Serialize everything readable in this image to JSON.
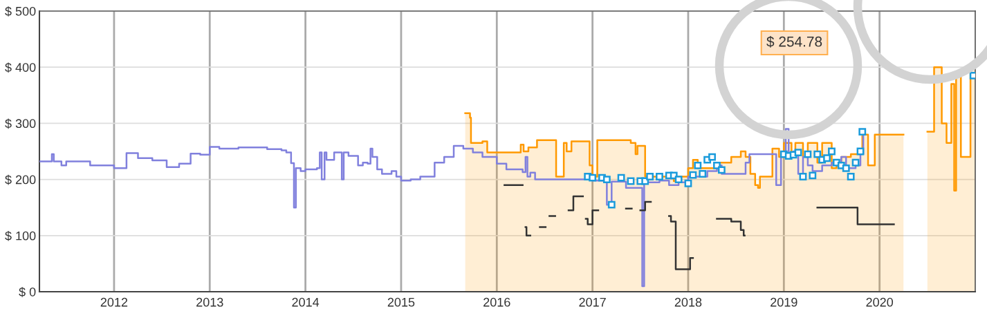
{
  "chart_data": {
    "type": "step",
    "xlim": [
      2011.22,
      2021.0
    ],
    "xticks": [
      {
        "value": 2012,
        "label": "2012"
      },
      {
        "value": 2013,
        "label": "2013"
      },
      {
        "value": 2014,
        "label": "2014"
      },
      {
        "value": 2015,
        "label": "2015"
      },
      {
        "value": 2016,
        "label": "2016"
      },
      {
        "value": 2017,
        "label": "2017"
      },
      {
        "value": 2018,
        "label": "2018"
      },
      {
        "value": 2019,
        "label": "2019"
      },
      {
        "value": 2020,
        "label": "2020"
      }
    ],
    "ylim": [
      0,
      500
    ],
    "yticks": [
      {
        "value": 0,
        "label": "$ 0"
      },
      {
        "value": 100,
        "label": "$ 100"
      },
      {
        "value": 200,
        "label": "$ 200"
      },
      {
        "value": 300,
        "label": "$ 300"
      },
      {
        "value": 400,
        "label": "$ 400"
      },
      {
        "value": 500,
        "label": "$ 500"
      }
    ],
    "grid": true,
    "annotations": [
      "$ 254.78"
    ],
    "series": [
      {
        "type": "area",
        "color": "#ff9900",
        "x": [
          2015.67,
          2015.72,
          2015.72,
          2015.73,
          2015.73,
          2015.85,
          2015.85,
          2015.9,
          2015.9,
          2016.25,
          2016.25,
          2016.28,
          2016.28,
          2016.33,
          2016.33,
          2016.42,
          2016.42,
          2016.62,
          2016.62,
          2016.7,
          2016.7,
          2016.73,
          2016.73,
          2016.78,
          2016.78,
          2016.97,
          2016.97,
          2017.0,
          2017.0,
          2017.05,
          2017.05,
          2017.4,
          2017.4,
          2017.45,
          2017.45,
          2017.47,
          2017.47,
          2017.55,
          2017.55,
          2017.8,
          2017.8,
          2017.85,
          2017.85,
          2017.9,
          2017.9,
          2018.0,
          2018.0,
          2018.05,
          2018.05,
          2018.1,
          2018.1,
          2018.3,
          2018.3,
          2018.45,
          2018.45,
          2018.55,
          2018.55,
          2018.6,
          2018.6,
          2018.65,
          2018.65,
          2018.7,
          2018.7,
          2018.73,
          2018.73,
          2018.75,
          2018.75,
          2018.88,
          2018.88,
          2018.95,
          2018.95,
          2019.0,
          2019.0,
          2019.08,
          2019.08,
          2019.12,
          2019.12,
          2019.2,
          2019.2,
          2019.25,
          2019.25,
          2019.35,
          2019.35,
          2019.4,
          2019.4,
          2019.5,
          2019.5,
          2019.55,
          2019.55,
          2019.6,
          2019.6,
          2019.7,
          2019.7,
          2019.8,
          2019.8,
          2019.82,
          2019.82,
          2019.88,
          2019.88,
          2019.95,
          2019.95,
          2020.25,
          2020.3,
          2020.5,
          2020.57,
          2020.57,
          2020.65,
          2020.65,
          2020.7,
          2020.7,
          2020.75,
          2020.75,
          2020.78,
          2020.78,
          2020.8,
          2020.8,
          2020.85,
          2020.85,
          2020.95,
          2020.95,
          2021.0
        ],
        "values": [
          318,
          318,
          310,
          310,
          265,
          265,
          268,
          268,
          248,
          248,
          262,
          262,
          250,
          250,
          257,
          257,
          270,
          270,
          205,
          205,
          265,
          265,
          250,
          250,
          268,
          268,
          225,
          225,
          205,
          205,
          270,
          270,
          265,
          265,
          245,
          245,
          260,
          260,
          205,
          205,
          203,
          203,
          197,
          197,
          205,
          205,
          220,
          220,
          235,
          235,
          220,
          220,
          230,
          230,
          240,
          240,
          250,
          250,
          240,
          240,
          210,
          210,
          190,
          190,
          185,
          185,
          205,
          205,
          255,
          255,
          240,
          240,
          265,
          265,
          240,
          240,
          265,
          265,
          240,
          240,
          265,
          265,
          230,
          230,
          265,
          265,
          220,
          220,
          230,
          230,
          240,
          240,
          245,
          245,
          250,
          250,
          280,
          280,
          225,
          225,
          280,
          280,
          null,
          285,
          285,
          400,
          400,
          300,
          300,
          265,
          265,
          370,
          370,
          180,
          180,
          390,
          390,
          240,
          240,
          400,
          400
        ]
      },
      {
        "color": "#8080dd",
        "x": [
          2011.22,
          2011.35,
          2011.37,
          2011.45,
          2011.5,
          2011.75,
          2012.0,
          2012.13,
          2012.25,
          2012.4,
          2012.55,
          2012.68,
          2012.8,
          2012.9,
          2013.0,
          2013.1,
          2013.3,
          2013.6,
          2013.75,
          2013.8,
          2013.85,
          2013.88,
          2013.9,
          2013.95,
          2014.0,
          2014.12,
          2014.15,
          2014.17,
          2014.2,
          2014.22,
          2014.3,
          2014.38,
          2014.4,
          2014.45,
          2014.55,
          2014.6,
          2014.65,
          2014.68,
          2014.7,
          2014.75,
          2014.8,
          2014.9,
          2014.95,
          2015.0,
          2015.1,
          2015.2,
          2015.35,
          2015.45,
          2015.55,
          2015.65,
          2015.75,
          2015.85,
          2016.0,
          2016.1,
          2016.25,
          2016.27,
          2016.3,
          2016.32,
          2016.35,
          2016.4,
          2016.9,
          2017.0,
          2017.15,
          2017.2,
          2017.35,
          2017.5,
          2017.52,
          2017.54,
          2017.7,
          2017.8,
          2017.9,
          2018.0,
          2018.2,
          2018.3,
          2018.35,
          2018.6,
          2018.64,
          2018.92,
          2018.97,
          2019.0,
          2019.02,
          2019.05,
          2019.1,
          2019.15,
          2019.2,
          2019.25,
          2019.3,
          2019.4,
          2019.5,
          2019.6,
          2019.65,
          2019.75,
          2019.8,
          2019.83,
          2019.85
        ],
        "values": [
          232,
          245,
          232,
          225,
          232,
          225,
          220,
          247,
          238,
          234,
          222,
          228,
          246,
          244,
          258,
          255,
          257,
          254,
          252,
          248,
          229,
          150,
          220,
          215,
          218,
          220,
          248,
          200,
          248,
          235,
          248,
          200,
          248,
          242,
          225,
          230,
          228,
          255,
          240,
          218,
          210,
          215,
          205,
          198,
          200,
          205,
          230,
          240,
          260,
          255,
          248,
          240,
          228,
          218,
          218,
          213,
          240,
          205,
          212,
          200,
          200,
          198,
          155,
          196,
          185,
          185,
          10,
          195,
          198,
          190,
          195,
          205,
          215,
          225,
          210,
          230,
          245,
          190,
          245,
          250,
          290,
          245,
          250,
          210,
          240,
          225,
          215,
          225,
          230,
          240,
          220,
          225,
          245,
          280,
          280
        ]
      },
      {
        "color": "#333333",
        "x": [
          2016.08,
          2016.26,
          2016.27,
          2016.3,
          2016.31,
          2016.35,
          2016.45,
          2016.5,
          2016.51,
          2016.55,
          2016.6,
          2016.61,
          2016.75,
          2016.8,
          2016.9,
          2016.93,
          2016.95,
          2017.0,
          2017.05,
          2017.06,
          2017.35,
          2017.4,
          2017.41,
          2017.5,
          2017.55,
          2017.6,
          2017.61,
          2017.8,
          2017.82,
          2017.87,
          2018.0,
          2018.02,
          2018.05,
          2018.3,
          2018.45,
          2018.55,
          2018.58,
          2018.59,
          2019.35,
          2019.75,
          2019.77,
          2020.15
        ],
        "values": [
          190,
          190,
          null,
          115,
          100,
          null,
          115,
          115,
          null,
          135,
          135,
          null,
          145,
          170,
          null,
          130,
          120,
          145,
          145,
          null,
          148,
          148,
          null,
          145,
          160,
          160,
          null,
          135,
          125,
          40,
          40,
          60,
          null,
          130,
          125,
          110,
          100,
          null,
          150,
          150,
          120,
          120
        ]
      },
      {
        "type": "scatter",
        "color": "#1a9bdb",
        "marker": "square",
        "x": [
          2016.95,
          2017.0,
          2017.1,
          2017.15,
          2017.2,
          2017.3,
          2017.4,
          2017.5,
          2017.55,
          2017.6,
          2017.7,
          2017.8,
          2017.85,
          2017.9,
          2018.0,
          2018.05,
          2018.1,
          2018.15,
          2018.2,
          2018.25,
          2018.3,
          2018.35,
          2019.0,
          2019.05,
          2019.1,
          2019.15,
          2019.2,
          2019.25,
          2019.3,
          2019.35,
          2019.4,
          2019.45,
          2019.5,
          2019.55,
          2019.6,
          2019.65,
          2019.7,
          2019.75,
          2019.8,
          2019.82,
          2020.98
        ],
        "values": [
          205,
          203,
          203,
          200,
          155,
          203,
          197,
          197,
          197,
          205,
          205,
          207,
          207,
          200,
          193,
          208,
          225,
          210,
          235,
          240,
          225,
          217,
          245,
          242,
          244,
          248,
          205,
          245,
          207,
          245,
          235,
          238,
          250,
          230,
          225,
          220,
          205,
          230,
          250,
          285,
          385
        ]
      }
    ]
  }
}
